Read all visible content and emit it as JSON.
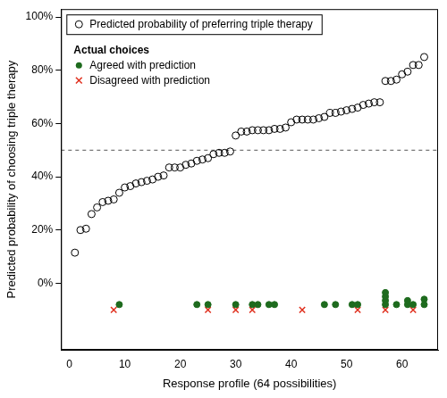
{
  "chart_data": {
    "type": "scatter",
    "x_label": "Response profile (64 possibilities)",
    "y_label": "Predicted probability of choosing triple therapy",
    "legend": "top left",
    "legend_title": "Actual choices",
    "xlim": [
      -1.5,
      66.5
    ],
    "xticks": [
      0,
      10,
      20,
      30,
      40,
      50,
      60
    ],
    "ylim": [
      -25,
      103
    ],
    "yticks": [
      {
        "value": 0,
        "label": "0%"
      },
      {
        "value": 20,
        "label": "20%"
      },
      {
        "value": 40,
        "label": "40%"
      },
      {
        "value": 60,
        "label": "60%"
      },
      {
        "value": 80,
        "label": "80%"
      },
      {
        "value": 100,
        "label": "100%"
      }
    ],
    "grid": false,
    "reference_lines": [
      {
        "y": 50,
        "line_style": "dashed",
        "color": "#555555"
      }
    ],
    "series": [
      {
        "name": "Predicted probability of preferring triple therapy",
        "color": "#000000",
        "marker": "circle_open",
        "x": [
          1,
          2,
          3,
          4,
          5,
          6,
          7,
          8,
          9,
          10,
          11,
          12,
          13,
          14,
          15,
          16,
          17,
          18,
          19,
          20,
          21,
          22,
          23,
          24,
          25,
          26,
          27,
          28,
          29,
          30,
          31,
          32,
          33,
          34,
          35,
          36,
          37,
          38,
          39,
          40,
          41,
          42,
          43,
          44,
          45,
          46,
          47,
          48,
          49,
          50,
          51,
          52,
          53,
          54,
          55,
          56,
          57,
          58,
          59,
          60,
          61,
          62,
          63,
          64
        ],
        "values": [
          11.5,
          20,
          20.5,
          26,
          28.5,
          30.5,
          31,
          31.5,
          34,
          36,
          36.5,
          37.5,
          38,
          38.5,
          39,
          40,
          40.5,
          43.5,
          43.5,
          43.5,
          44.5,
          45,
          46,
          46.5,
          47,
          48.5,
          49,
          49,
          49.5,
          55.5,
          57,
          57,
          57.5,
          57.5,
          57.5,
          57.5,
          58,
          58,
          58.5,
          60.5,
          61.5,
          61.5,
          61.5,
          61.5,
          62,
          62.5,
          64,
          64,
          64.5,
          65,
          65.5,
          66,
          67,
          67.5,
          68,
          68,
          76,
          76,
          76.5,
          78.5,
          79.5,
          82,
          82,
          85
        ]
      },
      {
        "name": "Agreed with prediction",
        "color": "#1e6b1e",
        "marker": "circle",
        "x": [
          9,
          23,
          25,
          30,
          33,
          34,
          36,
          37,
          46,
          48,
          51,
          52,
          57,
          57,
          57,
          57,
          59,
          61,
          61,
          62,
          64,
          64
        ],
        "values": [
          -8,
          -8,
          -8,
          -8,
          -8,
          -8,
          -8,
          -8,
          -8,
          -8,
          -8,
          -8,
          -8,
          -6.5,
          -5,
          -3.5,
          -8,
          -8,
          -6.5,
          -8,
          -8,
          -6
        ]
      },
      {
        "name": "Disagreed with prediction",
        "color": "#e0301e",
        "marker": "cross",
        "x": [
          8,
          25,
          30,
          33,
          42,
          52,
          57,
          62
        ],
        "values": [
          -10,
          -10,
          -10,
          -10,
          -10,
          -10,
          -10,
          -10
        ]
      }
    ]
  }
}
